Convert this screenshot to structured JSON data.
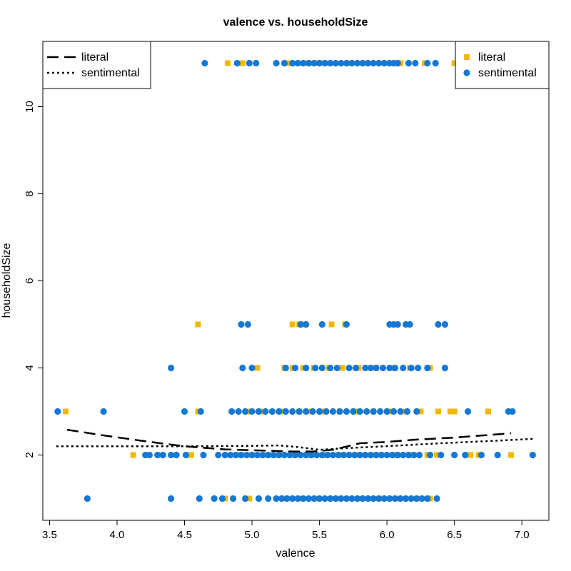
{
  "chart_data": {
    "type": "scatter",
    "title": "valence vs. householdSize",
    "xlabel": "valence",
    "ylabel": "householdSize",
    "xlim": [
      3.45,
      7.2
    ],
    "ylim": [
      0.5,
      11.5
    ],
    "xticks": [
      "3.5",
      "4.0",
      "4.5",
      "5.0",
      "5.5",
      "6.0",
      "6.5",
      "7.0"
    ],
    "yticks": [
      "2",
      "4",
      "6",
      "8",
      "10"
    ],
    "grid": false,
    "colors": {
      "literal": "#F2B800",
      "sentimental": "#1578D4",
      "line": "#000000"
    },
    "series": [
      {
        "name": "literal",
        "marker": "square",
        "points": [
          [
            3.62,
            3
          ],
          [
            4.6,
            3
          ],
          [
            4.97,
            3
          ],
          [
            5.06,
            3
          ],
          [
            5.22,
            3
          ],
          [
            5.35,
            3
          ],
          [
            5.44,
            3
          ],
          [
            5.53,
            3
          ],
          [
            5.65,
            3
          ],
          [
            5.78,
            3
          ],
          [
            5.9,
            3
          ],
          [
            6.02,
            3
          ],
          [
            6.14,
            3
          ],
          [
            6.25,
            3
          ],
          [
            6.38,
            3
          ],
          [
            6.47,
            3
          ],
          [
            6.5,
            3
          ],
          [
            6.75,
            3
          ],
          [
            4.12,
            2
          ],
          [
            4.55,
            2
          ],
          [
            4.9,
            2
          ],
          [
            5.0,
            2
          ],
          [
            5.12,
            2
          ],
          [
            5.2,
            2
          ],
          [
            5.32,
            2
          ],
          [
            5.44,
            2
          ],
          [
            5.55,
            2
          ],
          [
            5.65,
            2
          ],
          [
            5.79,
            2
          ],
          [
            5.92,
            2
          ],
          [
            6.05,
            2
          ],
          [
            6.18,
            2
          ],
          [
            6.3,
            2
          ],
          [
            6.37,
            2
          ],
          [
            6.62,
            2
          ],
          [
            6.68,
            2
          ],
          [
            6.92,
            2
          ],
          [
            4.8,
            1
          ],
          [
            4.98,
            1
          ],
          [
            5.23,
            1
          ],
          [
            5.35,
            1
          ],
          [
            5.48,
            1
          ],
          [
            5.63,
            1
          ],
          [
            5.79,
            1
          ],
          [
            5.94,
            1
          ],
          [
            6.08,
            1
          ],
          [
            6.22,
            1
          ],
          [
            6.32,
            1
          ],
          [
            4.6,
            5
          ],
          [
            5.3,
            5
          ],
          [
            5.35,
            5
          ],
          [
            5.39,
            5
          ],
          [
            5.59,
            5
          ],
          [
            5.69,
            5
          ],
          [
            5.04,
            4
          ],
          [
            5.24,
            4
          ],
          [
            5.3,
            4
          ],
          [
            5.38,
            4
          ],
          [
            5.46,
            4
          ],
          [
            5.57,
            4
          ],
          [
            5.67,
            4
          ],
          [
            5.79,
            4
          ],
          [
            5.92,
            4
          ],
          [
            6.05,
            4
          ],
          [
            6.17,
            4
          ],
          [
            6.32,
            4
          ],
          [
            4.82,
            11
          ],
          [
            4.93,
            11
          ],
          [
            5.26,
            11
          ],
          [
            5.42,
            11
          ],
          [
            5.47,
            11
          ],
          [
            5.54,
            11
          ],
          [
            5.71,
            11
          ],
          [
            5.82,
            11
          ],
          [
            5.98,
            11
          ],
          [
            6.1,
            11
          ],
          [
            6.28,
            11
          ],
          [
            6.5,
            11
          ]
        ]
      },
      {
        "name": "sentimental",
        "marker": "circle",
        "points": [
          [
            3.56,
            3
          ],
          [
            3.9,
            3
          ],
          [
            4.5,
            3
          ],
          [
            4.62,
            3
          ],
          [
            4.85,
            3
          ],
          [
            4.9,
            3
          ],
          [
            4.95,
            3
          ],
          [
            5.0,
            3
          ],
          [
            5.05,
            3
          ],
          [
            5.1,
            3
          ],
          [
            5.15,
            3
          ],
          [
            5.2,
            3
          ],
          [
            5.25,
            3
          ],
          [
            5.3,
            3
          ],
          [
            5.35,
            3
          ],
          [
            5.4,
            3
          ],
          [
            5.45,
            3
          ],
          [
            5.5,
            3
          ],
          [
            5.55,
            3
          ],
          [
            5.6,
            3
          ],
          [
            5.65,
            3
          ],
          [
            5.7,
            3
          ],
          [
            5.75,
            3
          ],
          [
            5.8,
            3
          ],
          [
            5.85,
            3
          ],
          [
            5.9,
            3
          ],
          [
            5.95,
            3
          ],
          [
            6.0,
            3
          ],
          [
            6.05,
            3
          ],
          [
            6.1,
            3
          ],
          [
            6.15,
            3
          ],
          [
            6.22,
            3
          ],
          [
            6.6,
            3
          ],
          [
            6.9,
            3
          ],
          [
            6.93,
            3
          ],
          [
            4.21,
            2
          ],
          [
            4.24,
            2
          ],
          [
            4.3,
            2
          ],
          [
            4.34,
            2
          ],
          [
            4.4,
            2
          ],
          [
            4.44,
            2
          ],
          [
            4.51,
            2
          ],
          [
            4.64,
            2
          ],
          [
            4.75,
            2
          ],
          [
            4.8,
            2
          ],
          [
            4.84,
            2
          ],
          [
            4.88,
            2
          ],
          [
            4.92,
            2
          ],
          [
            4.96,
            2
          ],
          [
            5.0,
            2
          ],
          [
            5.04,
            2
          ],
          [
            5.08,
            2
          ],
          [
            5.12,
            2
          ],
          [
            5.16,
            2
          ],
          [
            5.2,
            2
          ],
          [
            5.24,
            2
          ],
          [
            5.28,
            2
          ],
          [
            5.32,
            2
          ],
          [
            5.36,
            2
          ],
          [
            5.4,
            2
          ],
          [
            5.44,
            2
          ],
          [
            5.48,
            2
          ],
          [
            5.52,
            2
          ],
          [
            5.56,
            2
          ],
          [
            5.6,
            2
          ],
          [
            5.64,
            2
          ],
          [
            5.68,
            2
          ],
          [
            5.72,
            2
          ],
          [
            5.76,
            2
          ],
          [
            5.8,
            2
          ],
          [
            5.84,
            2
          ],
          [
            5.88,
            2
          ],
          [
            5.92,
            2
          ],
          [
            5.96,
            2
          ],
          [
            6.0,
            2
          ],
          [
            6.04,
            2
          ],
          [
            6.08,
            2
          ],
          [
            6.12,
            2
          ],
          [
            6.16,
            2
          ],
          [
            6.2,
            2
          ],
          [
            6.24,
            2
          ],
          [
            6.32,
            2
          ],
          [
            6.4,
            2
          ],
          [
            6.5,
            2
          ],
          [
            6.58,
            2
          ],
          [
            6.7,
            2
          ],
          [
            6.82,
            2
          ],
          [
            7.08,
            2
          ],
          [
            3.78,
            1
          ],
          [
            4.4,
            1
          ],
          [
            4.61,
            1
          ],
          [
            4.72,
            1
          ],
          [
            4.78,
            1
          ],
          [
            4.86,
            1
          ],
          [
            4.95,
            1
          ],
          [
            5.05,
            1
          ],
          [
            5.12,
            1
          ],
          [
            5.18,
            1
          ],
          [
            5.22,
            1
          ],
          [
            5.26,
            1
          ],
          [
            5.3,
            1
          ],
          [
            5.34,
            1
          ],
          [
            5.38,
            1
          ],
          [
            5.42,
            1
          ],
          [
            5.46,
            1
          ],
          [
            5.5,
            1
          ],
          [
            5.54,
            1
          ],
          [
            5.58,
            1
          ],
          [
            5.62,
            1
          ],
          [
            5.66,
            1
          ],
          [
            5.7,
            1
          ],
          [
            5.74,
            1
          ],
          [
            5.78,
            1
          ],
          [
            5.82,
            1
          ],
          [
            5.86,
            1
          ],
          [
            5.9,
            1
          ],
          [
            5.94,
            1
          ],
          [
            5.98,
            1
          ],
          [
            6.02,
            1
          ],
          [
            6.06,
            1
          ],
          [
            6.1,
            1
          ],
          [
            6.14,
            1
          ],
          [
            6.18,
            1
          ],
          [
            6.22,
            1
          ],
          [
            6.26,
            1
          ],
          [
            6.3,
            1
          ],
          [
            6.37,
            1
          ],
          [
            4.92,
            5
          ],
          [
            4.97,
            5
          ],
          [
            5.36,
            5
          ],
          [
            5.4,
            5
          ],
          [
            5.52,
            5
          ],
          [
            5.7,
            5
          ],
          [
            6.02,
            5
          ],
          [
            6.05,
            5
          ],
          [
            6.08,
            5
          ],
          [
            6.14,
            5
          ],
          [
            6.17,
            5
          ],
          [
            6.38,
            5
          ],
          [
            6.43,
            5
          ],
          [
            4.4,
            4
          ],
          [
            4.93,
            4
          ],
          [
            5.0,
            4
          ],
          [
            5.25,
            4
          ],
          [
            5.32,
            4
          ],
          [
            5.4,
            4
          ],
          [
            5.47,
            4
          ],
          [
            5.52,
            4
          ],
          [
            5.58,
            4
          ],
          [
            5.63,
            4
          ],
          [
            5.72,
            4
          ],
          [
            5.77,
            4
          ],
          [
            5.84,
            4
          ],
          [
            5.88,
            4
          ],
          [
            5.92,
            4
          ],
          [
            5.97,
            4
          ],
          [
            6.02,
            4
          ],
          [
            6.06,
            4
          ],
          [
            6.12,
            4
          ],
          [
            6.18,
            4
          ],
          [
            6.23,
            4
          ],
          [
            6.3,
            4
          ],
          [
            6.43,
            4
          ],
          [
            4.65,
            11
          ],
          [
            4.89,
            11
          ],
          [
            4.98,
            11
          ],
          [
            5.03,
            11
          ],
          [
            5.18,
            11
          ],
          [
            5.24,
            11
          ],
          [
            5.3,
            11
          ],
          [
            5.34,
            11
          ],
          [
            5.38,
            11
          ],
          [
            5.42,
            11
          ],
          [
            5.46,
            11
          ],
          [
            5.5,
            11
          ],
          [
            5.54,
            11
          ],
          [
            5.58,
            11
          ],
          [
            5.62,
            11
          ],
          [
            5.66,
            11
          ],
          [
            5.7,
            11
          ],
          [
            5.74,
            11
          ],
          [
            5.78,
            11
          ],
          [
            5.82,
            11
          ],
          [
            5.86,
            11
          ],
          [
            5.9,
            11
          ],
          [
            5.94,
            11
          ],
          [
            5.98,
            11
          ],
          [
            6.02,
            11
          ],
          [
            6.05,
            11
          ],
          [
            6.08,
            11
          ],
          [
            6.16,
            11
          ],
          [
            6.21,
            11
          ],
          [
            6.3,
            11
          ],
          [
            6.36,
            11
          ],
          [
            6.55,
            11
          ]
        ]
      }
    ],
    "trend_lines": [
      {
        "name": "literal",
        "style": "dashed",
        "points": [
          [
            3.63,
            2.58
          ],
          [
            3.9,
            2.45
          ],
          [
            4.2,
            2.32
          ],
          [
            4.5,
            2.2
          ],
          [
            4.8,
            2.13
          ],
          [
            5.1,
            2.1
          ],
          [
            5.3,
            2.08
          ],
          [
            5.45,
            2.08
          ],
          [
            5.6,
            2.12
          ],
          [
            5.8,
            2.27
          ],
          [
            6.0,
            2.3
          ],
          [
            6.2,
            2.35
          ],
          [
            6.5,
            2.4
          ],
          [
            6.92,
            2.5
          ]
        ]
      },
      {
        "name": "sentimental",
        "style": "dotted",
        "points": [
          [
            3.55,
            2.2
          ],
          [
            4.0,
            2.2
          ],
          [
            4.5,
            2.2
          ],
          [
            5.0,
            2.21
          ],
          [
            5.2,
            2.22
          ],
          [
            5.35,
            2.18
          ],
          [
            5.5,
            2.12
          ],
          [
            5.65,
            2.15
          ],
          [
            5.85,
            2.18
          ],
          [
            6.1,
            2.22
          ],
          [
            6.4,
            2.27
          ],
          [
            6.75,
            2.32
          ],
          [
            7.08,
            2.37
          ]
        ]
      }
    ],
    "legends": [
      {
        "position": "top-left",
        "entries": [
          {
            "label": "literal",
            "style": "dashed"
          },
          {
            "label": "sentimental",
            "style": "dotted"
          }
        ]
      },
      {
        "position": "top-right",
        "entries": [
          {
            "label": "literal",
            "marker": "square"
          },
          {
            "label": "sentimental",
            "marker": "circle"
          }
        ]
      }
    ]
  }
}
